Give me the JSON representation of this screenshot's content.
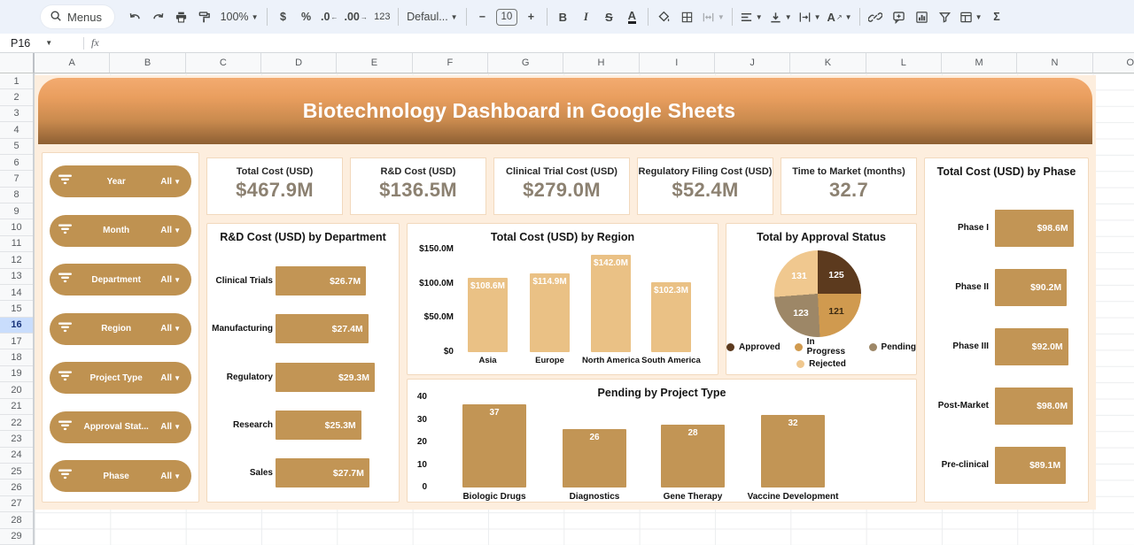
{
  "toolbar": {
    "menus_label": "Menus",
    "zoom_value": "100%",
    "currency": "$",
    "percent": "%",
    "decrease_decimal": ".0",
    "increase_decimal": ".00",
    "more_formats": "123",
    "font_name": "Defaul...",
    "minus": "−",
    "font_size": "10",
    "plus": "+",
    "bold": "B",
    "italic": "I",
    "strikethrough": "S",
    "text_color": "A",
    "text_rotation": "A",
    "sum": "Σ"
  },
  "formula_bar": {
    "name_box": "P16",
    "fx_label": "fx",
    "value": ""
  },
  "grid": {
    "column_headers": [
      "A",
      "B",
      "C",
      "D",
      "E",
      "F",
      "G",
      "H",
      "I",
      "J",
      "K",
      "L",
      "M",
      "N",
      "O"
    ],
    "row_count": 29,
    "selected_row": 16
  },
  "dashboard": {
    "title": "Biotechnology Dashboard in Google Sheets",
    "filters": [
      {
        "label": "Year",
        "value": "All"
      },
      {
        "label": "Month",
        "value": "All"
      },
      {
        "label": "Department",
        "value": "All"
      },
      {
        "label": "Region",
        "value": "All"
      },
      {
        "label": "Project Type",
        "value": "All"
      },
      {
        "label": "Approval Stat...",
        "value": "All"
      },
      {
        "label": "Phase",
        "value": "All"
      }
    ],
    "kpis": [
      {
        "label": "Total Cost (USD)",
        "value": "$467.9M"
      },
      {
        "label": "R&D Cost (USD)",
        "value": "$136.5M"
      },
      {
        "label": "Clinical Trial Cost (USD)",
        "value": "$279.0M"
      },
      {
        "label": "Regulatory Filing Cost (USD)",
        "value": "$52.4M"
      },
      {
        "label": "Time to Market (months)",
        "value": "32.7"
      }
    ],
    "colors": {
      "accent_tan": "#bf9251",
      "bar_dark": "#c29555",
      "bar_light": "#eac185",
      "background_peach": "#fdeede",
      "banner_top": "#f3ab70",
      "banner_bottom": "#8d5f33"
    }
  },
  "chart_data": [
    {
      "id": "dept",
      "type": "bar",
      "orientation": "horizontal",
      "title": "R&D Cost (USD) by Department",
      "categories": [
        "Clinical Trials",
        "Manufacturing",
        "Regulatory",
        "Research",
        "Sales"
      ],
      "values": [
        26.7,
        27.4,
        29.3,
        25.3,
        27.7
      ],
      "data_labels": [
        "$26.7M",
        "$27.4M",
        "$29.3M",
        "$25.3M",
        "$27.7M"
      ],
      "xlim": [
        0,
        29.3
      ],
      "bar_color": "#c29555"
    },
    {
      "id": "region",
      "type": "bar",
      "orientation": "vertical",
      "title": "Total Cost (USD) by Region",
      "categories": [
        "Asia",
        "Europe",
        "North America",
        "South America"
      ],
      "values": [
        108.6,
        114.9,
        142.0,
        102.3
      ],
      "data_labels": [
        "$108.6M",
        "$114.9M",
        "$142.0M",
        "$102.3M"
      ],
      "ytick_labels": [
        "$150.0M",
        "$100.0M",
        "$50.0M",
        "$0"
      ],
      "ylim": [
        0,
        150
      ],
      "bar_color": "#eac185"
    },
    {
      "id": "approval",
      "type": "pie",
      "title": "Total by Approval Status",
      "slices": [
        {
          "label": "Approved",
          "value": 125,
          "color": "#5c3a1e",
          "text_color": "#ffffff"
        },
        {
          "label": "In Progress",
          "value": 121,
          "color": "#d09a4f",
          "text_color": "#3b2a12"
        },
        {
          "label": "Pending",
          "value": 123,
          "color": "#9d8767",
          "text_color": "#ffffff"
        },
        {
          "label": "Rejected",
          "value": 131,
          "color": "#f0c88f",
          "text_color": "#ffffff"
        }
      ],
      "legend_rows": [
        [
          "Approved",
          "In Progress",
          "Pending"
        ],
        [
          "Rejected"
        ]
      ]
    },
    {
      "id": "pending",
      "type": "bar",
      "orientation": "vertical",
      "title": "Pending by Project Type",
      "categories": [
        "Biologic Drugs",
        "Diagnostics",
        "Gene Therapy",
        "Vaccine Development"
      ],
      "values": [
        37,
        26,
        28,
        32
      ],
      "data_labels": [
        "37",
        "26",
        "28",
        "32"
      ],
      "ytick_labels": [
        "40",
        "30",
        "20",
        "10",
        "0"
      ],
      "ylim": [
        0,
        40
      ],
      "bar_color": "#c29555"
    },
    {
      "id": "phase",
      "type": "bar",
      "orientation": "horizontal",
      "title": "Total Cost (USD) by Phase",
      "categories": [
        "Phase I",
        "Phase II",
        "Phase III",
        "Post-Market",
        "Pre-clinical"
      ],
      "values": [
        98.6,
        90.2,
        92.0,
        98.0,
        89.1
      ],
      "data_labels": [
        "$98.6M",
        "$90.2M",
        "$92.0M",
        "$98.0M",
        "$89.1M"
      ],
      "xlim": [
        0,
        98.6
      ],
      "bar_color": "#c29555"
    }
  ]
}
